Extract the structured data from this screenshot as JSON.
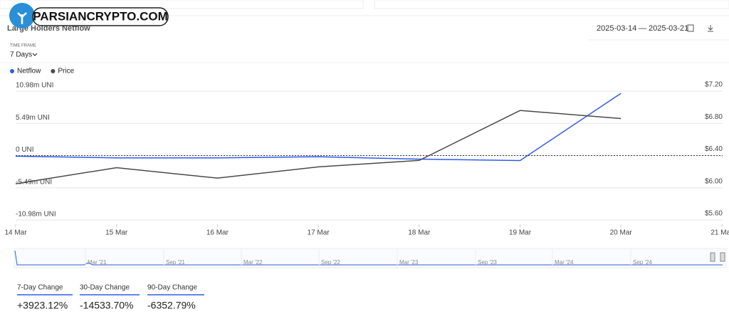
{
  "watermark": "PARSIANCRYPTO.COM",
  "header": {
    "date_from": "2025-03-14",
    "date_to": "2025-03-21",
    "timeframe_label": "TIME FRAME",
    "timeframe": "7 Days"
  },
  "navigator": {
    "labels": [
      "Mar '21",
      "Sep '21",
      "Mar '22",
      "Sep '22",
      "Mar '23",
      "Sep '23",
      "Mar '24",
      "Sep '24"
    ]
  },
  "stats": [
    {
      "label": "7-Day Change",
      "value": "+3923.12%"
    },
    {
      "label": "30-Day Change",
      "value": "-14533.70%"
    },
    {
      "label": "90-Day Change",
      "value": "-6352.79%"
    }
  ],
  "chart_data": {
    "type": "line",
    "title": "Large Holders Netflow",
    "categories": [
      "14 Mar",
      "15 Mar",
      "16 Mar",
      "17 Mar",
      "18 Mar",
      "19 Mar",
      "20 Mar",
      "21 Mar"
    ],
    "series": [
      {
        "name": "Netflow",
        "color": "#2f5be8",
        "values": [
          -0.1,
          -0.4,
          -0.4,
          -0.2,
          -0.6,
          -0.85,
          10.6,
          null
        ]
      },
      {
        "name": "Price",
        "color": "#4a4a4a",
        "axis": "y2",
        "values": [
          6.05,
          6.25,
          6.12,
          6.26,
          6.34,
          6.96,
          6.86,
          null
        ]
      }
    ],
    "ylim": [
      -10.98,
      10.98
    ],
    "yticks": [
      {
        "value": 10.98,
        "label": "10.98m UNI"
      },
      {
        "value": 5.49,
        "label": "5.49m UNI"
      },
      {
        "value": 0,
        "label": "0 UNI"
      },
      {
        "value": -5.49,
        "label": "-5.49m UNI"
      },
      {
        "value": -10.98,
        "label": "-10.98m UNI"
      }
    ],
    "y2lim": [
      5.6,
      7.2
    ],
    "y2ticks": [
      {
        "value": 7.2,
        "label": "$7.20"
      },
      {
        "value": 6.8,
        "label": "$6.80"
      },
      {
        "value": 6.4,
        "label": "$6.40"
      },
      {
        "value": 6.0,
        "label": "$6.00"
      },
      {
        "value": 5.6,
        "label": "$5.60"
      }
    ],
    "grid": true,
    "legend": "top-left"
  }
}
